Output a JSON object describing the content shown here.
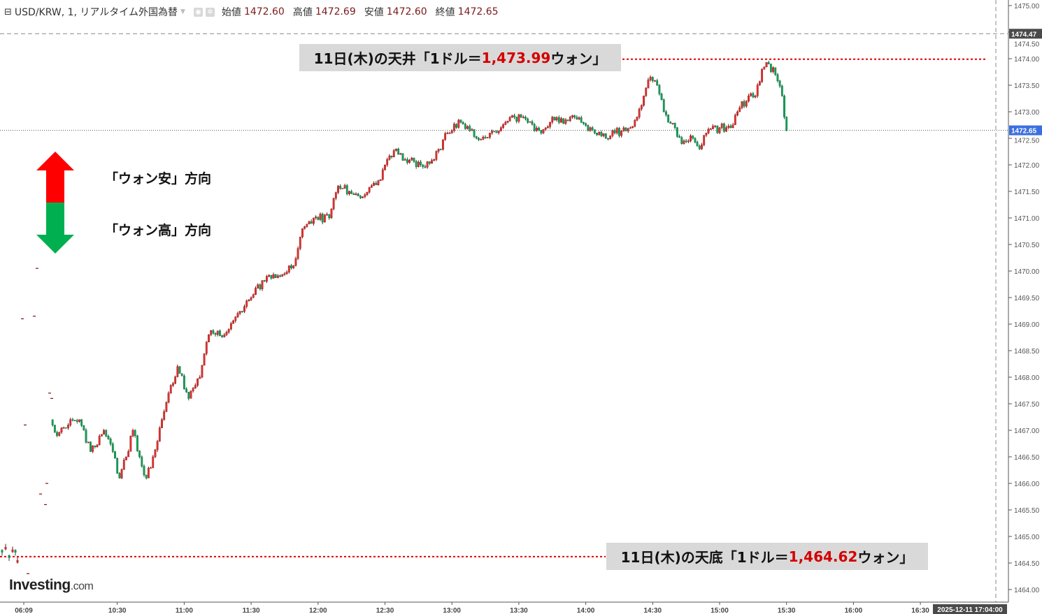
{
  "header": {
    "collapse_icon": "minus-square-icon",
    "symbol_title": "USD/KRW, 1, リアルタイム外国為替",
    "dropdown_icon": "caret-down-icon",
    "icons": [
      "eye-icon",
      "gear-icon"
    ],
    "open_label": "始値",
    "open_value": "1472.60",
    "high_label": "高値",
    "high_value": "1472.69",
    "low_label": "安値",
    "low_value": "1472.60",
    "close_label": "終値",
    "close_value": "1472.65"
  },
  "annotations": {
    "top": {
      "prefix": "11日(木)の天井「1ドル＝",
      "value": "1,473.99",
      "suffix": "ウォン」",
      "price": 1473.99
    },
    "bottom": {
      "prefix": "11日(木)の天底「1ドル＝",
      "value": "1,464.62",
      "suffix": "ウォン」",
      "price": 1464.62
    },
    "weak_won": "「ウォン安」方向",
    "strong_won": "「ウォン高」方向"
  },
  "colors": {
    "up": "#e8302c",
    "down": "#12a35a",
    "arrow_up": "#ff0000",
    "arrow_down": "#00b050",
    "last_price": "#3b6fe0",
    "crosshair_label": "#4a4a4a",
    "annotation_line": "#e00000"
  },
  "logo": {
    "text": "Investing",
    "suffix": ".com"
  },
  "chart_data": {
    "type": "candlestick",
    "interval": "1",
    "y_axis": {
      "ticks": [
        "1475.00",
        "1474.50",
        "1474.00",
        "1473.50",
        "1473.00",
        "1472.50",
        "1472.00",
        "1471.50",
        "1471.00",
        "1470.50",
        "1470.00",
        "1469.50",
        "1469.00",
        "1468.50",
        "1468.00",
        "1467.50",
        "1467.00",
        "1466.50",
        "1466.00",
        "1465.50",
        "1465.00",
        "1464.50",
        "1464.00"
      ],
      "range": [
        1464.0,
        1475.0
      ],
      "position": "right"
    },
    "x_axis": {
      "ticks": [
        "06:09",
        "10:30",
        "11:00",
        "11:30",
        "12:00",
        "12:30",
        "13:00",
        "13:30",
        "14:00",
        "14:30",
        "15:00",
        "15:30",
        "16:00",
        "16:30"
      ]
    },
    "last_price": {
      "value": 1472.65,
      "label": "1472.65"
    },
    "crosshair": {
      "price_label": "1474.47",
      "price": 1474.47,
      "time_label": "2025-12-11 17:04:00"
    },
    "pre_session_prices": [
      1464.7,
      1464.8,
      1464.6,
      1464.75,
      1464.7,
      1464.55,
      1464.3,
      1469.1,
      1467.1,
      1469.15,
      1470.05,
      1465.8,
      1465.6,
      1466.0,
      1467.7,
      1467.6
    ],
    "closes": [
      [
        "10:00",
        1467.2
      ],
      [
        "10:03",
        1466.9
      ],
      [
        "10:09",
        1467.2
      ],
      [
        "10:13",
        1467.2
      ],
      [
        "10:18",
        1466.6
      ],
      [
        "10:24",
        1467.0
      ],
      [
        "10:28",
        1466.6
      ],
      [
        "10:31",
        1466.1
      ],
      [
        "10:34",
        1466.5
      ],
      [
        "10:37",
        1467.0
      ],
      [
        "10:40",
        1466.5
      ],
      [
        "10:43",
        1466.1
      ],
      [
        "10:46",
        1466.5
      ],
      [
        "10:50",
        1467.2
      ],
      [
        "10:53",
        1467.7
      ],
      [
        "10:57",
        1468.2
      ],
      [
        "11:02",
        1467.6
      ],
      [
        "11:07",
        1468.0
      ],
      [
        "11:11",
        1468.8
      ],
      [
        "11:18",
        1468.8
      ],
      [
        "11:24",
        1469.2
      ],
      [
        "11:30",
        1469.5
      ],
      [
        "11:37",
        1469.9
      ],
      [
        "11:43",
        1469.9
      ],
      [
        "11:49",
        1470.1
      ],
      [
        "11:53",
        1470.8
      ],
      [
        "11:58",
        1471.0
      ],
      [
        "12:05",
        1471.0
      ],
      [
        "12:09",
        1471.6
      ],
      [
        "12:14",
        1471.5
      ],
      [
        "12:20",
        1471.4
      ],
      [
        "12:27",
        1471.7
      ],
      [
        "12:30",
        1472.0
      ],
      [
        "12:35",
        1472.3
      ],
      [
        "12:39",
        1472.1
      ],
      [
        "12:46",
        1472.0
      ],
      [
        "12:52",
        1472.1
      ],
      [
        "12:58",
        1472.6
      ],
      [
        "13:04",
        1472.8
      ],
      [
        "13:11",
        1472.5
      ],
      [
        "13:17",
        1472.6
      ],
      [
        "13:22",
        1472.7
      ],
      [
        "13:28",
        1472.9
      ],
      [
        "13:34",
        1472.8
      ],
      [
        "13:40",
        1472.6
      ],
      [
        "13:45",
        1472.9
      ],
      [
        "13:48",
        1472.8
      ],
      [
        "13:53",
        1472.9
      ],
      [
        "13:58",
        1472.8
      ],
      [
        "14:04",
        1472.6
      ],
      [
        "14:09",
        1472.5
      ],
      [
        "14:13",
        1472.6
      ],
      [
        "14:20",
        1472.7
      ],
      [
        "14:23",
        1472.9
      ],
      [
        "14:26",
        1473.3
      ],
      [
        "14:28",
        1473.6
      ],
      [
        "14:32",
        1473.5
      ],
      [
        "14:35",
        1473.0
      ],
      [
        "14:40",
        1472.7
      ],
      [
        "14:43",
        1472.4
      ],
      [
        "14:48",
        1472.5
      ],
      [
        "14:51",
        1472.3
      ],
      [
        "14:54",
        1472.6
      ],
      [
        "15:00",
        1472.7
      ],
      [
        "15:05",
        1472.7
      ],
      [
        "15:08",
        1473.0
      ],
      [
        "15:13",
        1473.3
      ],
      [
        "15:16",
        1473.3
      ],
      [
        "15:19",
        1473.8
      ],
      [
        "15:22",
        1473.9
      ],
      [
        "15:25",
        1473.7
      ],
      [
        "15:28",
        1473.3
      ],
      [
        "15:29",
        1472.9
      ],
      [
        "15:30",
        1472.65
      ]
    ]
  }
}
